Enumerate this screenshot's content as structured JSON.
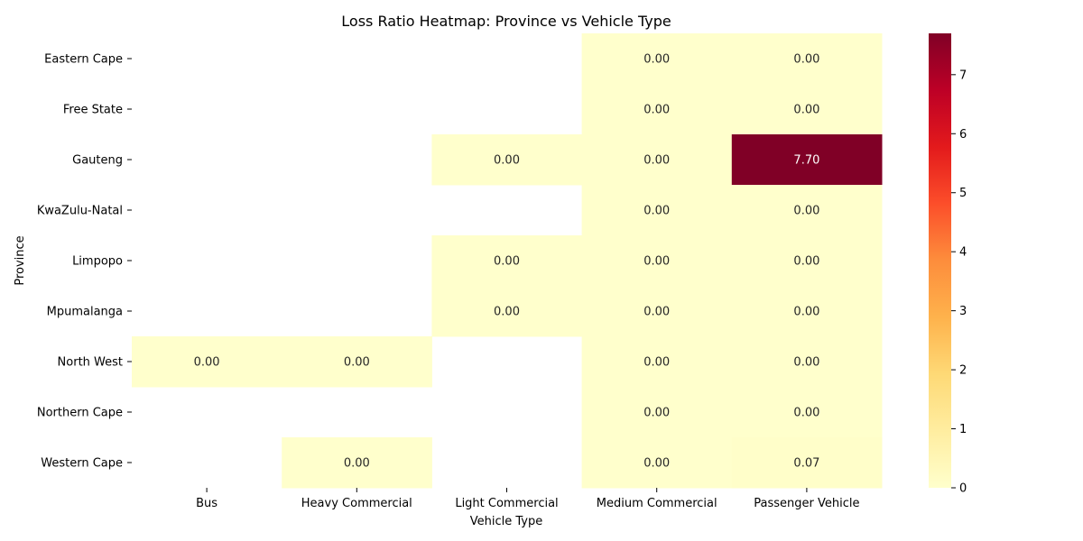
{
  "chart_data": {
    "type": "heatmap",
    "title": "Loss Ratio Heatmap: Province vs Vehicle Type",
    "xlabel": "Vehicle Type",
    "ylabel": "Province",
    "x_categories": [
      "Bus",
      "Heavy Commercial",
      "Light Commercial",
      "Medium Commercial",
      "Passenger Vehicle"
    ],
    "y_categories": [
      "Eastern Cape",
      "Free State",
      "Gauteng",
      "KwaZulu-Natal",
      "Limpopo",
      "Mpumalanga",
      "North West",
      "Northern Cape",
      "Western Cape"
    ],
    "values": [
      [
        null,
        null,
        null,
        0.0,
        0.0
      ],
      [
        null,
        null,
        null,
        0.0,
        0.0
      ],
      [
        null,
        null,
        0.0,
        0.0,
        7.7
      ],
      [
        null,
        null,
        null,
        0.0,
        0.0
      ],
      [
        null,
        null,
        0.0,
        0.0,
        0.0
      ],
      [
        null,
        null,
        0.0,
        0.0,
        0.0
      ],
      [
        0.0,
        0.0,
        null,
        0.0,
        0.0
      ],
      [
        null,
        null,
        null,
        0.0,
        0.0
      ],
      [
        null,
        0.0,
        null,
        0.0,
        0.07
      ]
    ],
    "value_format": "0.00",
    "colormap": "YlOrRd",
    "colorbar": {
      "min": 0,
      "max": 7.7,
      "ticks": [
        0,
        1,
        2,
        3,
        4,
        5,
        6,
        7
      ]
    }
  }
}
